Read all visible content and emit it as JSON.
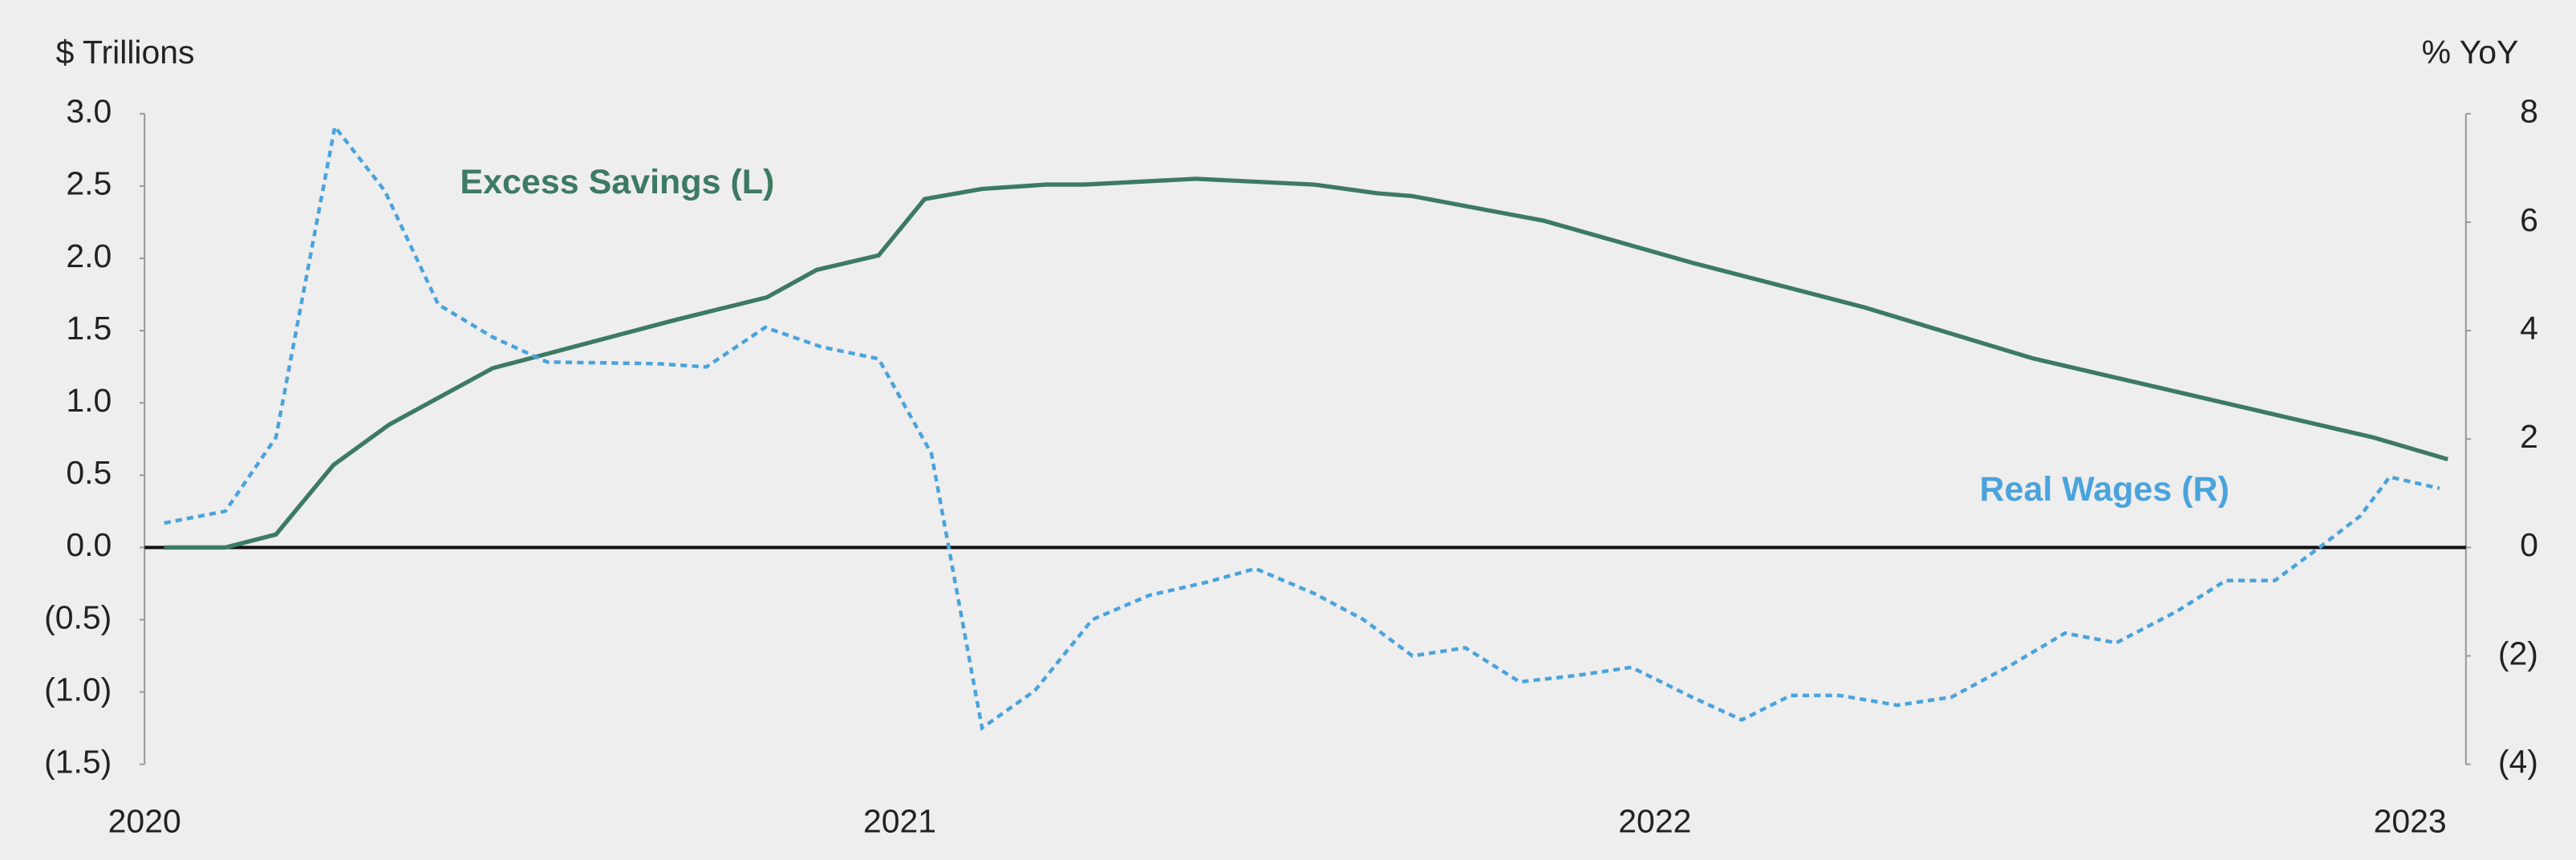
{
  "chart_data": {
    "type": "line",
    "ylabel": "$ Trillions",
    "y2label": "% YoY",
    "xlim": [
      2020,
      2023.074
    ],
    "xticks": [
      2020,
      2021,
      2022,
      2023
    ],
    "ylim": [
      -1.5,
      3.0
    ],
    "yticks": [
      {
        "value": 3.0,
        "label": "3.0"
      },
      {
        "value": 2.5,
        "label": "2.5"
      },
      {
        "value": 2.0,
        "label": "2.0"
      },
      {
        "value": 1.5,
        "label": "1.5"
      },
      {
        "value": 1.0,
        "label": "1.0"
      },
      {
        "value": 0.5,
        "label": "0.5"
      },
      {
        "value": 0,
        "label": "0.0"
      },
      {
        "value": -0.5,
        "label": "(0.5)"
      },
      {
        "value": -1.0,
        "label": "(1.0)"
      },
      {
        "value": -1.5,
        "label": "(1.5)"
      }
    ],
    "y2lim": [
      -4,
      8
    ],
    "y2ticks": [
      8,
      6,
      4,
      2,
      0,
      {
        "value": -2,
        "label": "(2)"
      },
      {
        "value": -4,
        "label": "(4)"
      }
    ],
    "series": [
      {
        "name": "Excess Savings (L)",
        "color": "#3d7a63",
        "dash": false,
        "x": [
          2020.026,
          2020.107,
          2020.174,
          2020.25,
          2020.324,
          2020.461,
          2020.7,
          2020.824,
          2020.89,
          2020.972,
          2021.033,
          2021.109,
          2021.194,
          2021.244,
          2021.392,
          2021.549,
          2021.632,
          2021.679,
          2021.853,
          2022.049,
          2022.278,
          2022.499,
          2022.952,
          2023.05
        ],
        "values": [
          0,
          0,
          0.09,
          0.57,
          0.85,
          1.24,
          1.57,
          1.73,
          1.92,
          2.02,
          2.41,
          2.48,
          2.51,
          2.51,
          2.55,
          2.51,
          2.45,
          2.43,
          2.26,
          1.97,
          1.66,
          1.31,
          0.76,
          0.61
        ]
      },
      {
        "name": "Real Wages (R)",
        "color": "#4aa3dc",
        "dash": true,
        "axis": "y2",
        "x": [
          2020.026,
          2020.107,
          2020.174,
          2020.252,
          2020.318,
          2020.389,
          2020.461,
          2020.533,
          2020.679,
          2020.744,
          2020.822,
          2020.896,
          2020.972,
          2021.042,
          2021.109,
          2021.179,
          2021.255,
          2021.331,
          2021.407,
          2021.471,
          2021.549,
          2021.614,
          2021.679,
          2021.749,
          2021.821,
          2021.897,
          2021.969,
          2022.049,
          2022.115,
          2022.18,
          2022.245,
          2022.321,
          2022.393,
          2022.474,
          2022.543,
          2022.611,
          2022.691,
          2022.756,
          2022.821,
          2022.88,
          2022.934,
          2022.973,
          2023.039
        ],
        "values": [
          0.45,
          0.67,
          2.03,
          7.76,
          6.58,
          4.48,
          3.88,
          3.42,
          3.39,
          3.33,
          4.06,
          3.7,
          3.48,
          1.73,
          -3.33,
          -2.64,
          -1.33,
          -0.88,
          -0.64,
          -0.39,
          -0.85,
          -1.33,
          -2.0,
          -1.85,
          -2.48,
          -2.36,
          -2.21,
          -2.76,
          -3.18,
          -2.73,
          -2.73,
          -2.91,
          -2.76,
          -2.15,
          -1.58,
          -1.76,
          -1.18,
          -0.61,
          -0.61,
          0,
          0.58,
          1.3,
          1.09
        ]
      }
    ]
  }
}
